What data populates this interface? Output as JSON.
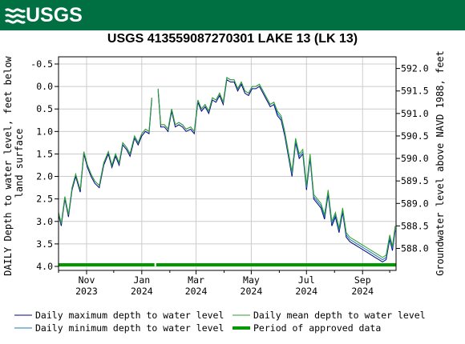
{
  "header": {
    "logo_text": "USGS",
    "banner_color": "#006f41",
    "logo_icon": "usgs-wave-icon"
  },
  "chart_data": {
    "type": "line",
    "title": "USGS 413559087270301 LAKE 13 (LK 13)",
    "ylabel": "DAILY Depth to water level, feet below land surface",
    "y2label": "Groundwater level above NAVD 1988, feet",
    "yaxis_inverted": true,
    "ylim": [
      -0.5,
      4.0
    ],
    "y_ticks": [
      "-0.5",
      "0.0",
      "0.5",
      "1.0",
      "1.5",
      "2.0",
      "2.5",
      "3.0",
      "3.5",
      "4.0"
    ],
    "y2lim": [
      587.6,
      592.1
    ],
    "y2_ticks": [
      "592.0",
      "591.5",
      "591.0",
      "590.5",
      "590.0",
      "589.5",
      "589.0",
      "588.5",
      "588.0"
    ],
    "xlim": [
      "2023-10-01",
      "2024-10-08"
    ],
    "x_ticks": [
      {
        "month": "Nov",
        "year": "2023",
        "date": "2023-11-01"
      },
      {
        "month": "Jan",
        "year": "2024",
        "date": "2024-01-01"
      },
      {
        "month": "Mar",
        "year": "2024",
        "date": "2024-03-01"
      },
      {
        "month": "May",
        "year": "2024",
        "date": "2024-05-01"
      },
      {
        "month": "Jul",
        "year": "2024",
        "date": "2024-07-01"
      },
      {
        "month": "Sep",
        "year": "2024",
        "date": "2024-09-01"
      }
    ],
    "grid": true,
    "legend_position": "bottom",
    "x": [
      "2023-10-01",
      "2023-10-04",
      "2023-10-08",
      "2023-10-12",
      "2023-10-16",
      "2023-10-20",
      "2023-10-25",
      "2023-10-29",
      "2023-11-02",
      "2023-11-06",
      "2023-11-10",
      "2023-11-15",
      "2023-11-20",
      "2023-11-25",
      "2023-11-29",
      "2023-12-03",
      "2023-12-07",
      "2023-12-11",
      "2023-12-15",
      "2023-12-19",
      "2023-12-24",
      "2023-12-28",
      "2024-01-01",
      "2024-01-05",
      "2024-01-09",
      "2024-01-12",
      "2024-01-14",
      "2024-01-16",
      "2024-01-19",
      "2024-01-22",
      "2024-01-26",
      "2024-01-30",
      "2024-02-03",
      "2024-02-07",
      "2024-02-11",
      "2024-02-15",
      "2024-02-19",
      "2024-02-24",
      "2024-02-28",
      "2024-03-03",
      "2024-03-07",
      "2024-03-11",
      "2024-03-15",
      "2024-03-19",
      "2024-03-23",
      "2024-03-27",
      "2024-03-31",
      "2024-04-04",
      "2024-04-08",
      "2024-04-12",
      "2024-04-16",
      "2024-04-20",
      "2024-04-24",
      "2024-04-28",
      "2024-05-02",
      "2024-05-06",
      "2024-05-10",
      "2024-05-14",
      "2024-05-18",
      "2024-05-22",
      "2024-05-26",
      "2024-05-30",
      "2024-06-03",
      "2024-06-07",
      "2024-06-11",
      "2024-06-15",
      "2024-06-19",
      "2024-06-23",
      "2024-06-27",
      "2024-07-01",
      "2024-07-05",
      "2024-07-09",
      "2024-07-13",
      "2024-07-17",
      "2024-07-21",
      "2024-07-25",
      "2024-07-29",
      "2024-08-02",
      "2024-08-06",
      "2024-08-10",
      "2024-08-14",
      "2024-08-18",
      "2024-08-22",
      "2024-08-26",
      "2024-08-30",
      "2024-09-03",
      "2024-09-07",
      "2024-09-11",
      "2024-09-15",
      "2024-09-19",
      "2024-09-23",
      "2024-09-27",
      "2024-10-01",
      "2024-10-04",
      "2024-10-07"
    ],
    "series": [
      {
        "name": "Daily maximum depth to water level",
        "color": "#00008b",
        "values": [
          2.85,
          3.1,
          2.5,
          2.9,
          2.3,
          2.0,
          2.35,
          1.5,
          1.8,
          2.0,
          2.15,
          2.25,
          1.75,
          1.5,
          1.8,
          1.55,
          1.75,
          1.3,
          1.4,
          1.55,
          1.15,
          1.3,
          1.1,
          1.0,
          1.05,
          0.3,
          1.05,
          1.2,
          0.1,
          0.9,
          0.9,
          1.0,
          0.55,
          0.9,
          0.85,
          0.9,
          1.0,
          0.95,
          1.05,
          0.35,
          0.55,
          0.45,
          0.6,
          0.3,
          0.35,
          0.2,
          0.4,
          -0.15,
          -0.1,
          -0.1,
          0.1,
          -0.05,
          0.15,
          0.2,
          0.05,
          0.05,
          0.0,
          0.15,
          0.3,
          0.45,
          0.4,
          0.65,
          0.75,
          1.1,
          1.55,
          2.0,
          1.25,
          1.6,
          1.5,
          2.3,
          1.6,
          2.5,
          2.6,
          2.7,
          2.95,
          2.4,
          3.1,
          2.9,
          3.25,
          2.8,
          3.35,
          3.45,
          3.5,
          3.55,
          3.6,
          3.65,
          3.7,
          3.75,
          3.8,
          3.85,
          3.9,
          3.85,
          3.4,
          3.65,
          3.2
        ]
      },
      {
        "name": "Daily minimum depth to water level",
        "color": "#1f77b4",
        "values": [
          2.8,
          3.05,
          2.45,
          2.85,
          2.25,
          1.95,
          2.3,
          1.45,
          1.75,
          1.95,
          2.1,
          2.2,
          1.7,
          1.45,
          1.75,
          1.5,
          1.7,
          1.25,
          1.35,
          1.5,
          1.1,
          1.25,
          1.05,
          0.95,
          1.0,
          0.25,
          1.0,
          1.15,
          0.05,
          0.85,
          0.85,
          0.95,
          0.5,
          0.85,
          0.8,
          0.85,
          0.95,
          0.9,
          1.0,
          0.3,
          0.5,
          0.4,
          0.55,
          0.25,
          0.3,
          0.15,
          0.35,
          -0.2,
          -0.15,
          -0.15,
          0.05,
          -0.1,
          0.1,
          0.15,
          0.0,
          0.0,
          -0.05,
          0.1,
          0.25,
          0.4,
          0.35,
          0.6,
          0.7,
          1.05,
          1.5,
          1.95,
          1.2,
          1.55,
          1.45,
          2.25,
          1.55,
          2.45,
          2.55,
          2.65,
          2.9,
          2.35,
          3.05,
          2.85,
          3.2,
          2.75,
          3.3,
          3.4,
          3.45,
          3.5,
          3.55,
          3.6,
          3.65,
          3.7,
          3.75,
          3.8,
          3.85,
          3.8,
          3.35,
          3.6,
          3.15
        ]
      },
      {
        "name": "Daily mean depth to water level",
        "color": "#2ca02c",
        "values": [
          2.8,
          3.05,
          2.45,
          2.85,
          2.25,
          1.95,
          2.3,
          1.45,
          1.75,
          1.95,
          2.1,
          2.2,
          1.7,
          1.45,
          1.75,
          1.5,
          1.7,
          1.25,
          1.35,
          1.5,
          1.1,
          1.25,
          1.05,
          0.95,
          1.0,
          0.25,
          1.0,
          1.15,
          0.05,
          0.85,
          0.85,
          0.95,
          0.5,
          0.85,
          0.8,
          0.85,
          0.95,
          0.9,
          1.0,
          0.3,
          0.5,
          0.4,
          0.55,
          0.25,
          0.3,
          0.15,
          0.35,
          -0.2,
          -0.15,
          -0.15,
          0.05,
          -0.1,
          0.1,
          0.15,
          0.0,
          0.0,
          -0.05,
          0.1,
          0.25,
          0.4,
          0.35,
          0.55,
          0.65,
          1.0,
          1.45,
          1.9,
          1.15,
          1.5,
          1.4,
          2.2,
          1.5,
          2.4,
          2.5,
          2.6,
          2.85,
          2.3,
          3.0,
          2.8,
          3.15,
          2.7,
          3.25,
          3.35,
          3.4,
          3.45,
          3.5,
          3.55,
          3.6,
          3.65,
          3.7,
          3.75,
          3.8,
          3.75,
          3.3,
          3.55,
          3.1
        ]
      }
    ],
    "approved_period": {
      "name": "Period of approved data",
      "color": "#009900",
      "segments": [
        [
          "2023-10-01",
          "2024-01-15"
        ],
        [
          "2024-01-17",
          "2024-10-08"
        ]
      ]
    }
  }
}
